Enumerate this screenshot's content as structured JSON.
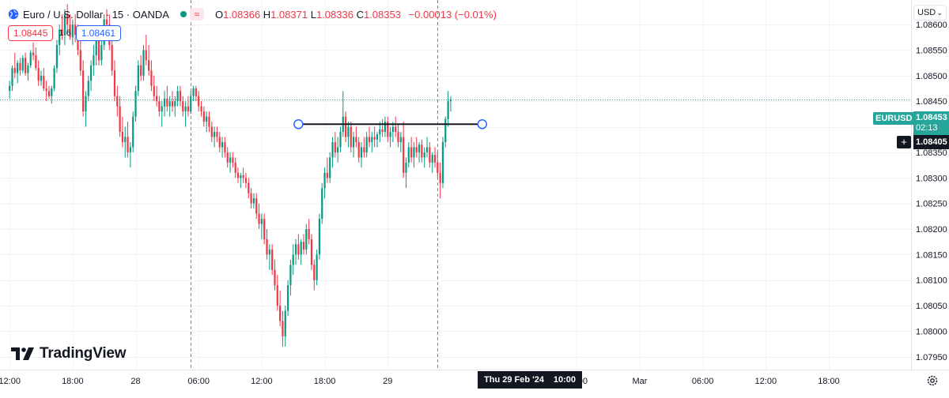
{
  "header": {
    "symbol_title": "Euro / U.S. Dollar · 15 · OANDA",
    "ohlc": {
      "o_label": "O",
      "o": "1.08366",
      "h_label": "H",
      "h": "1.08371",
      "l_label": "L",
      "l": "1.08336",
      "c_label": "C",
      "c": "1.08353",
      "change": "−0.00013 (−0.01%)"
    },
    "sell_price": "1.08445",
    "spread": "1.6",
    "buy_price": "1.08461",
    "currency": "USD"
  },
  "logo_text": "TradingView",
  "price_scale": {
    "symbol_tag": "EURUSD",
    "last_price": "1.08453",
    "countdown": "02:13",
    "crosshair_price": "1.08405"
  },
  "crosshair_time": {
    "date": "Thu 29 Feb '24",
    "time": "10:00"
  },
  "icons": {
    "globe": "globe-icon",
    "wave": "wave-icon",
    "plus": "plus-icon",
    "settings": "gear-icon",
    "logo": "tradingview-logo"
  },
  "colors": {
    "up": "#089981",
    "down": "#f23645",
    "last_price": "#26a69a",
    "crosshair": "#131722",
    "session_line": "#2962ff"
  },
  "chart_data": {
    "type": "candlestick",
    "symbol": "EURUSD",
    "interval": "15",
    "ylim": [
      1.07925,
      1.08648
    ],
    "y_ticks": [
      "1.08600",
      "1.08550",
      "1.08500",
      "1.08450",
      "1.08400",
      "1.08350",
      "1.08300",
      "1.08250",
      "1.08200",
      "1.08150",
      "1.08100",
      "1.08050",
      "1.08000",
      "1.07950"
    ],
    "x_ticks": [
      {
        "label": "12:00",
        "bar": 0
      },
      {
        "label": "18:00",
        "bar": 24
      },
      {
        "label": "28",
        "bar": 48
      },
      {
        "label": "06:00",
        "bar": 72
      },
      {
        "label": "12:00",
        "bar": 96
      },
      {
        "label": "18:00",
        "bar": 120
      },
      {
        "label": "29",
        "bar": 144
      },
      {
        "label": "18:00",
        "bar": 216
      },
      {
        "label": "Mar",
        "bar": 240
      },
      {
        "label": "06:00",
        "bar": 264
      },
      {
        "label": "12:00",
        "bar": 288
      },
      {
        "label": "18:00",
        "bar": 312
      }
    ],
    "session_breaks_bar": [
      69,
      163
    ],
    "last_price": 1.08453,
    "trend_line": {
      "y": 1.08405,
      "from_bar": 110,
      "to_bar": 180
    },
    "candles": [
      [
        1.0847,
        1.0849,
        1.08455,
        1.0848
      ],
      [
        1.0848,
        1.0852,
        1.0847,
        1.08515
      ],
      [
        1.08515,
        1.08545,
        1.08495,
        1.08505
      ],
      [
        1.08505,
        1.0853,
        1.08485,
        1.08525
      ],
      [
        1.08525,
        1.08535,
        1.085,
        1.0851
      ],
      [
        1.0851,
        1.0854,
        1.08505,
        1.08535
      ],
      [
        1.08535,
        1.08545,
        1.085,
        1.08505
      ],
      [
        1.08505,
        1.08525,
        1.0849,
        1.0852
      ],
      [
        1.0852,
        1.0855,
        1.08515,
        1.08545
      ],
      [
        1.08545,
        1.08565,
        1.0853,
        1.0854
      ],
      [
        1.0854,
        1.08555,
        1.0851,
        1.08515
      ],
      [
        1.08515,
        1.0853,
        1.0848,
        1.0849
      ],
      [
        1.0849,
        1.0851,
        1.0848,
        1.085
      ],
      [
        1.085,
        1.08515,
        1.0847,
        1.08475
      ],
      [
        1.08475,
        1.0849,
        1.0845,
        1.0847
      ],
      [
        1.0847,
        1.0848,
        1.08455,
        1.0846
      ],
      [
        1.0846,
        1.0848,
        1.08445,
        1.08475
      ],
      [
        1.08475,
        1.0852,
        1.0847,
        1.08515
      ],
      [
        1.08515,
        1.0857,
        1.08505,
        1.0856
      ],
      [
        1.0856,
        1.086,
        1.0854,
        1.0859
      ],
      [
        1.0859,
        1.0862,
        1.0857,
        1.0858
      ],
      [
        1.0858,
        1.0863,
        1.0856,
        1.0862
      ],
      [
        1.0862,
        1.0864,
        1.0858,
        1.086
      ],
      [
        1.086,
        1.0862,
        1.0857,
        1.08575
      ],
      [
        1.08575,
        1.0861,
        1.0856,
        1.086
      ],
      [
        1.086,
        1.0862,
        1.08565,
        1.0858
      ],
      [
        1.0858,
        1.086,
        1.0854,
        1.0855
      ],
      [
        1.0855,
        1.0857,
        1.085,
        1.0851
      ],
      [
        1.0851,
        1.0853,
        1.0842,
        1.0843
      ],
      [
        1.0843,
        1.0847,
        1.084,
        1.0846
      ],
      [
        1.0846,
        1.085,
        1.0845,
        1.0849
      ],
      [
        1.0849,
        1.0853,
        1.0847,
        1.0852
      ],
      [
        1.0852,
        1.0856,
        1.085,
        1.0854
      ],
      [
        1.0854,
        1.0858,
        1.0852,
        1.0857
      ],
      [
        1.0857,
        1.0859,
        1.0852,
        1.0853
      ],
      [
        1.0853,
        1.0857,
        1.0852,
        1.0856
      ],
      [
        1.0856,
        1.0862,
        1.0855,
        1.0861
      ],
      [
        1.0861,
        1.0863,
        1.0858,
        1.086
      ],
      [
        1.086,
        1.0862,
        1.0855,
        1.0856
      ],
      [
        1.0856,
        1.0858,
        1.085,
        1.0851
      ],
      [
        1.0851,
        1.0853,
        1.0845,
        1.0846
      ],
      [
        1.0846,
        1.0848,
        1.0842,
        1.0844
      ],
      [
        1.0844,
        1.0846,
        1.0838,
        1.0839
      ],
      [
        1.0839,
        1.0842,
        1.0836,
        1.0837
      ],
      [
        1.0837,
        1.084,
        1.0834,
        1.0838
      ],
      [
        1.0838,
        1.0841,
        1.0834,
        1.0835
      ],
      [
        1.0835,
        1.0837,
        1.0832,
        1.0836
      ],
      [
        1.0836,
        1.0843,
        1.0835,
        1.0842
      ],
      [
        1.0842,
        1.0848,
        1.0841,
        1.0847
      ],
      [
        1.0847,
        1.0853,
        1.0846,
        1.0852
      ],
      [
        1.0852,
        1.0854,
        1.0849,
        1.085
      ],
      [
        1.085,
        1.0856,
        1.0849,
        1.0855
      ],
      [
        1.0855,
        1.0858,
        1.0852,
        1.0853
      ],
      [
        1.0853,
        1.0856,
        1.085,
        1.0851
      ],
      [
        1.0851,
        1.0853,
        1.0847,
        1.0848
      ],
      [
        1.0848,
        1.085,
        1.0845,
        1.0846
      ],
      [
        1.0846,
        1.0848,
        1.0844,
        1.0845
      ],
      [
        1.0845,
        1.0846,
        1.0842,
        1.0843
      ],
      [
        1.0843,
        1.0845,
        1.084,
        1.0844
      ],
      [
        1.0844,
        1.0847,
        1.0842,
        1.08455
      ],
      [
        1.08455,
        1.0848,
        1.0843,
        1.0844
      ],
      [
        1.0844,
        1.0846,
        1.0842,
        1.0845
      ],
      [
        1.0845,
        1.0847,
        1.0843,
        1.0844
      ],
      [
        1.0844,
        1.0846,
        1.0842,
        1.0845
      ],
      [
        1.0845,
        1.0848,
        1.0844,
        1.0847
      ],
      [
        1.0847,
        1.0848,
        1.0844,
        1.0845
      ],
      [
        1.0845,
        1.0846,
        1.0842,
        1.0843
      ],
      [
        1.0843,
        1.0845,
        1.084,
        1.0844
      ],
      [
        1.0844,
        1.0846,
        1.0842,
        1.0843
      ],
      [
        1.0843,
        1.0847,
        1.08425,
        1.0846
      ],
      [
        1.0846,
        1.0848,
        1.0845,
        1.08475
      ],
      [
        1.08475,
        1.0848,
        1.0845,
        1.0846
      ],
      [
        1.0846,
        1.0847,
        1.0843,
        1.0844
      ],
      [
        1.0844,
        1.0845,
        1.0842,
        1.0843
      ],
      [
        1.0843,
        1.0844,
        1.084,
        1.0841
      ],
      [
        1.0841,
        1.0843,
        1.0839,
        1.0842
      ],
      [
        1.0842,
        1.0843,
        1.0839,
        1.084
      ],
      [
        1.084,
        1.0841,
        1.0837,
        1.0838
      ],
      [
        1.0838,
        1.084,
        1.0836,
        1.0839
      ],
      [
        1.0839,
        1.084,
        1.0837,
        1.0838
      ],
      [
        1.0838,
        1.0839,
        1.0835,
        1.0836
      ],
      [
        1.0836,
        1.0838,
        1.0834,
        1.0837
      ],
      [
        1.0837,
        1.0838,
        1.0834,
        1.0835
      ],
      [
        1.0835,
        1.0836,
        1.0832,
        1.0833
      ],
      [
        1.0833,
        1.0835,
        1.0831,
        1.0834
      ],
      [
        1.0834,
        1.0835,
        1.0832,
        1.0833
      ],
      [
        1.0833,
        1.0834,
        1.083,
        1.0831
      ],
      [
        1.0831,
        1.0832,
        1.0829,
        1.083
      ],
      [
        1.083,
        1.0831,
        1.0828,
        1.08305
      ],
      [
        1.08305,
        1.0832,
        1.0829,
        1.083
      ],
      [
        1.083,
        1.0831,
        1.0828,
        1.0829
      ],
      [
        1.0829,
        1.083,
        1.0826,
        1.0827
      ],
      [
        1.0827,
        1.0828,
        1.0824,
        1.0825
      ],
      [
        1.0825,
        1.0827,
        1.0824,
        1.0826
      ],
      [
        1.0826,
        1.0827,
        1.0822,
        1.0823
      ],
      [
        1.0823,
        1.0825,
        1.082,
        1.0821
      ],
      [
        1.0821,
        1.0823,
        1.0818,
        1.0822
      ],
      [
        1.0822,
        1.0823,
        1.0817,
        1.0818
      ],
      [
        1.0818,
        1.082,
        1.0814,
        1.0815
      ],
      [
        1.0815,
        1.0817,
        1.0812,
        1.0816
      ],
      [
        1.0816,
        1.0817,
        1.0811,
        1.0812
      ],
      [
        1.0812,
        1.0814,
        1.0808,
        1.0809
      ],
      [
        1.0809,
        1.0811,
        1.0804,
        1.0805
      ],
      [
        1.0805,
        1.0808,
        1.0801,
        1.0802
      ],
      [
        1.0802,
        1.0804,
        1.0797,
        1.0799
      ],
      [
        1.0799,
        1.0805,
        1.0797,
        1.0804
      ],
      [
        1.0804,
        1.081,
        1.0803,
        1.0809
      ],
      [
        1.0809,
        1.0814,
        1.0807,
        1.0813
      ],
      [
        1.0813,
        1.0817,
        1.0811,
        1.0815
      ],
      [
        1.0815,
        1.0818,
        1.0813,
        1.0817
      ],
      [
        1.0817,
        1.0819,
        1.0814,
        1.0815
      ],
      [
        1.0815,
        1.0818,
        1.0813,
        1.08175
      ],
      [
        1.08175,
        1.0819,
        1.0815,
        1.0816
      ],
      [
        1.0816,
        1.0821,
        1.0815,
        1.082
      ],
      [
        1.082,
        1.0822,
        1.0817,
        1.0818
      ],
      [
        1.0818,
        1.0819,
        1.0812,
        1.0813
      ],
      [
        1.0813,
        1.0814,
        1.0808,
        1.081
      ],
      [
        1.081,
        1.0816,
        1.0809,
        1.0815
      ],
      [
        1.0815,
        1.0823,
        1.0814,
        1.0822
      ],
      [
        1.0822,
        1.0829,
        1.0821,
        1.0828
      ],
      [
        1.0828,
        1.0832,
        1.0826,
        1.0831
      ],
      [
        1.0831,
        1.0834,
        1.0829,
        1.083
      ],
      [
        1.083,
        1.0835,
        1.0829,
        1.0834
      ],
      [
        1.0834,
        1.0838,
        1.0832,
        1.0837
      ],
      [
        1.0837,
        1.0839,
        1.0834,
        1.0835
      ],
      [
        1.0835,
        1.0838,
        1.0833,
        1.0836
      ],
      [
        1.0836,
        1.084,
        1.0835,
        1.0839
      ],
      [
        1.0839,
        1.0847,
        1.0838,
        1.0842
      ],
      [
        1.0842,
        1.0843,
        1.0837,
        1.0838
      ],
      [
        1.0838,
        1.0841,
        1.0836,
        1.084
      ],
      [
        1.084,
        1.0841,
        1.0835,
        1.0836
      ],
      [
        1.0836,
        1.0839,
        1.0834,
        1.0838
      ],
      [
        1.0838,
        1.084,
        1.0836,
        1.0837
      ],
      [
        1.0837,
        1.0838,
        1.0833,
        1.0834
      ],
      [
        1.0834,
        1.0837,
        1.0832,
        1.0836
      ],
      [
        1.0836,
        1.0838,
        1.0834,
        1.0835
      ],
      [
        1.0835,
        1.0839,
        1.0834,
        1.0838
      ],
      [
        1.0838,
        1.084,
        1.0836,
        1.0837
      ],
      [
        1.0837,
        1.0839,
        1.0835,
        1.0838
      ],
      [
        1.0838,
        1.084,
        1.0836,
        1.08375
      ],
      [
        1.08375,
        1.0839,
        1.0836,
        1.08385
      ],
      [
        1.08385,
        1.0841,
        1.0837,
        1.08395
      ],
      [
        1.08395,
        1.08415,
        1.0838,
        1.0839
      ],
      [
        1.0839,
        1.0842,
        1.0838,
        1.0841
      ],
      [
        1.0841,
        1.0842,
        1.0837,
        1.0838
      ],
      [
        1.0838,
        1.084,
        1.0836,
        1.0839
      ],
      [
        1.0839,
        1.0841,
        1.0837,
        1.084
      ],
      [
        1.084,
        1.0842,
        1.0838,
        1.0839
      ],
      [
        1.0839,
        1.08405,
        1.0836,
        1.0837
      ],
      [
        1.0837,
        1.0839,
        1.0835,
        1.0838
      ],
      [
        1.0838,
        1.0841,
        1.083,
        1.0831
      ],
      [
        1.0831,
        1.0834,
        1.0828,
        1.0833
      ],
      [
        1.0833,
        1.0837,
        1.0832,
        1.0836
      ],
      [
        1.0836,
        1.0838,
        1.0833,
        1.0834
      ],
      [
        1.0834,
        1.0837,
        1.0832,
        1.0836
      ],
      [
        1.0836,
        1.0838,
        1.0834,
        1.0835
      ],
      [
        1.0835,
        1.0837,
        1.0833,
        1.08365
      ],
      [
        1.08365,
        1.08375,
        1.0833,
        1.0834
      ],
      [
        1.0834,
        1.0836,
        1.0832,
        1.0835
      ],
      [
        1.0835,
        1.0838,
        1.0834,
        1.0836
      ],
      [
        1.0836,
        1.0837,
        1.0832,
        1.0833
      ],
      [
        1.0833,
        1.0835,
        1.0831,
        1.08345
      ],
      [
        1.08345,
        1.0836,
        1.0832,
        1.0833
      ],
      [
        1.0833,
        1.0835,
        1.083,
        1.0831
      ],
      [
        1.0831,
        1.0833,
        1.0826,
        1.0829
      ],
      [
        1.0829,
        1.0838,
        1.0828,
        1.0837
      ],
      [
        1.0837,
        1.0842,
        1.0836,
        1.08415
      ],
      [
        1.08415,
        1.0847,
        1.084,
        1.0845
      ],
      [
        1.0845,
        1.0846,
        1.0843,
        1.08453
      ]
    ]
  }
}
